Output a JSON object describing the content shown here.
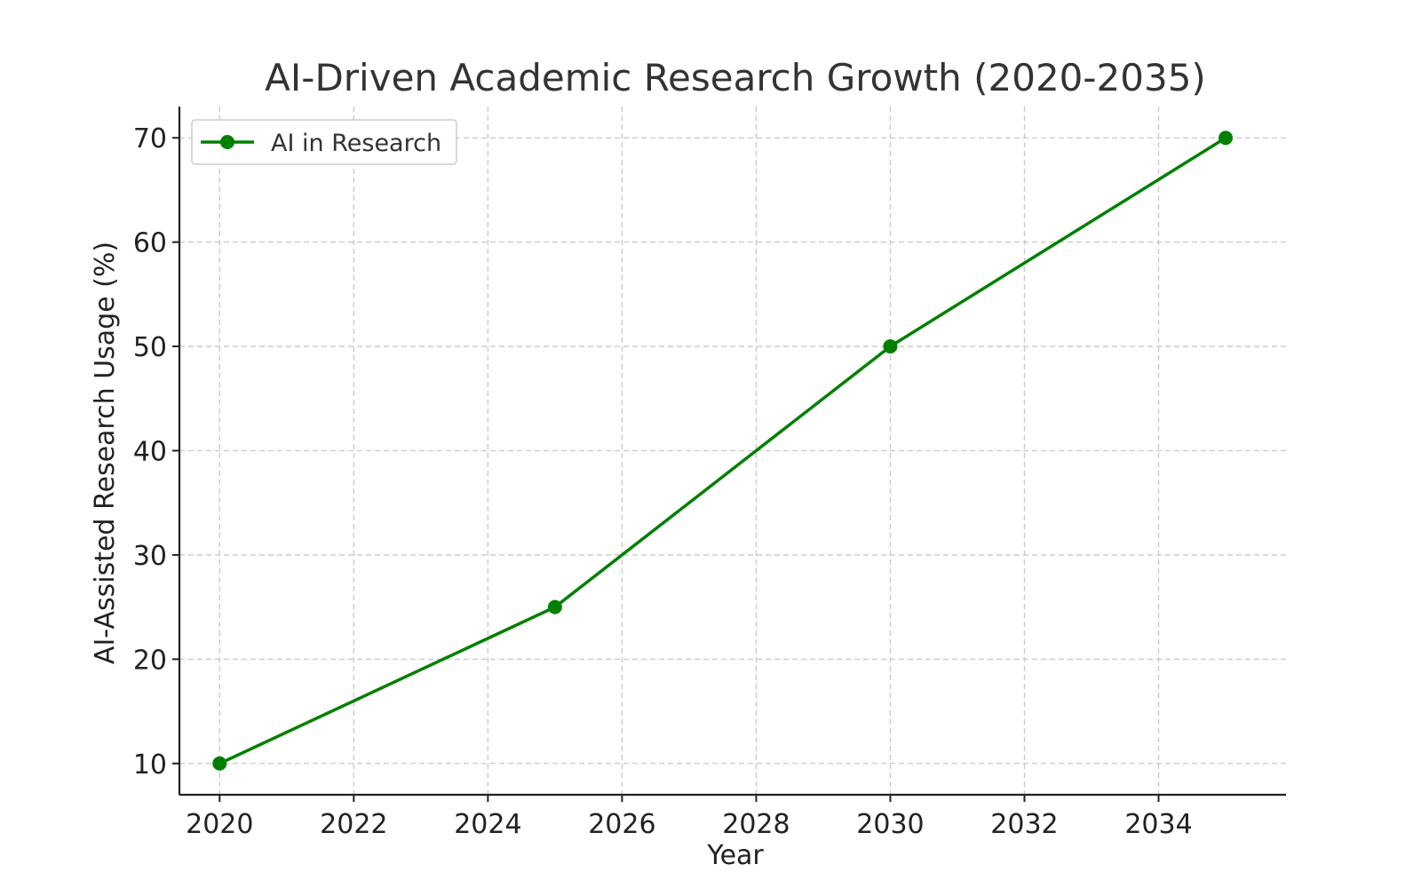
{
  "chart_data": {
    "type": "line",
    "title": "AI-Driven Academic Research Growth (2020-2035)",
    "xlabel": "Year",
    "ylabel": "AI-Assisted Research Usage (%)",
    "xlim": [
      2019.4,
      2035.9
    ],
    "ylim": [
      7,
      73
    ],
    "x_ticks": [
      2020,
      2022,
      2024,
      2026,
      2028,
      2030,
      2032,
      2034
    ],
    "y_ticks": [
      10,
      20,
      30,
      40,
      50,
      60,
      70
    ],
    "grid": true,
    "legend_position": "top-left",
    "series": [
      {
        "name": "AI in Research",
        "color": "#008000",
        "marker": "circle",
        "x": [
          2020,
          2025,
          2030,
          2035
        ],
        "y": [
          10,
          25,
          50,
          70
        ]
      }
    ]
  }
}
